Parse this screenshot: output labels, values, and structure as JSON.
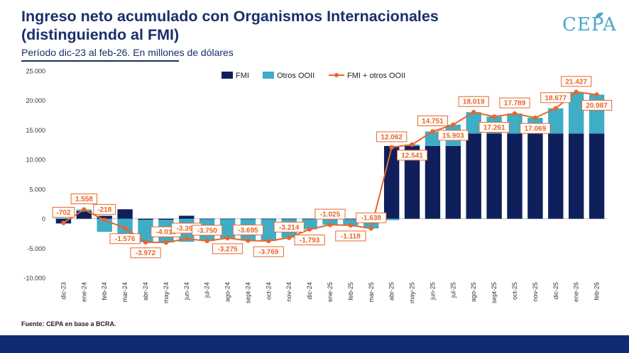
{
  "header": {
    "title": "Ingreso neto acumulado con Organismos Internacionales (distinguiendo al FMI)",
    "subtitle": "Período dic-23 al feb-26. En millones de dólares",
    "logo": "CEPA"
  },
  "footer": {
    "source": "Fuente: CEPA en base a BCRA."
  },
  "colors": {
    "fmi": "#0f1f5c",
    "otros": "#3eadc6",
    "total": "#e8662a",
    "title": "#1a2f6b"
  },
  "chart_data": {
    "type": "bar",
    "stacked": true,
    "title": "Ingreso neto acumulado con Organismos Internacionales (distinguiendo al FMI)",
    "ylabel": "En millones de dólares",
    "ylim": [
      -10000,
      25000
    ],
    "yticks": [
      25000,
      20000,
      15000,
      10000,
      5000,
      0,
      -5000,
      -10000
    ],
    "ytick_labels": [
      "25.000",
      "20.000",
      "15.000",
      "10.000",
      "5.000",
      "0",
      "-5.000",
      "-10.000"
    ],
    "legend_position": "top",
    "categories": [
      "dic-23",
      "ene-24",
      "feb-24",
      "mar-24",
      "abr-24",
      "may-24",
      "jun-24",
      "jul-24",
      "ago-24",
      "sept-24",
      "oct-24",
      "nov-24",
      "dic-24",
      "ene-25",
      "feb-25",
      "mar-25",
      "abr-25",
      "may-25",
      "jun-25",
      "jul-25",
      "ago-25",
      "sept-25",
      "oct-25",
      "nov-25",
      "dic-25",
      "ene-26",
      "feb-26"
    ],
    "series": [
      {
        "name": "FMI",
        "kind": "bar",
        "values": [
          -800,
          1300,
          500,
          1600,
          -200,
          -200,
          500,
          -100,
          -100,
          -100,
          -100,
          -100,
          -100,
          -100,
          -100,
          -200,
          12300,
          12300,
          12300,
          12300,
          14400,
          14400,
          14400,
          14400,
          14400,
          14400,
          14400
        ]
      },
      {
        "name": "Otros OOII",
        "kind": "bar",
        "values": [
          98,
          258,
          -2218,
          -3176,
          -3772,
          -3815,
          -3893,
          -3650,
          -3175,
          -3595,
          -3669,
          -3114,
          -1693,
          -925,
          -1018,
          -1438,
          -238,
          241,
          2451,
          3603,
          3619,
          2861,
          3389,
          2669,
          4277,
          7027,
          6587
        ]
      },
      {
        "name": "FMI + otros OOII",
        "kind": "line",
        "values": [
          -702,
          1558,
          -218,
          -1576,
          -3972,
          -4015,
          -3393,
          -3750,
          -3275,
          -3695,
          -3769,
          -3214,
          -1793,
          -1025,
          -1118,
          -1638,
          12062,
          12541,
          14751,
          15903,
          18019,
          17261,
          17789,
          17069,
          18677,
          21427,
          20987
        ],
        "labels": [
          "-702",
          "1.558",
          "-218",
          "-1.576",
          "-3.972",
          "-4.015",
          "-3.393",
          "-3.750",
          "-3.275",
          "-3.695",
          "-3.769",
          "-3.214",
          "-1.793",
          "-1.025",
          "-1.118",
          "-1.638",
          "12.062",
          "12.541",
          "14.751",
          "15.903",
          "18.019",
          "17.261",
          "17.789",
          "17.069",
          "18.677",
          "21.427",
          "20.987"
        ]
      }
    ]
  }
}
